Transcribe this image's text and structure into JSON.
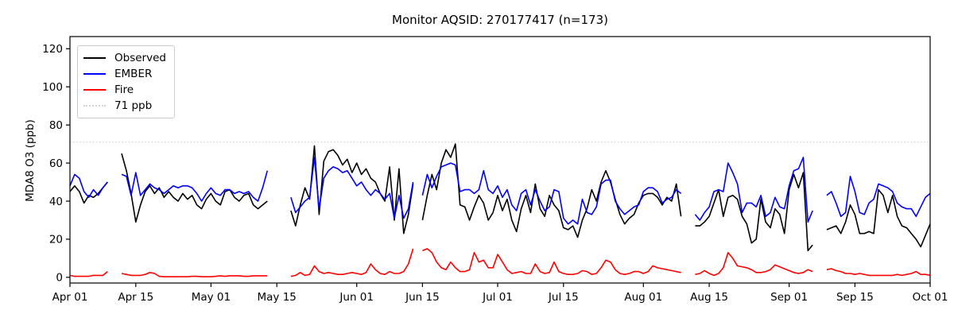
{
  "figure": {
    "title": "Monitor AQSID: 270177417 (n=173)",
    "ylabel": "MDA8 O3 (ppb)"
  },
  "legend": {
    "position": "upper-left",
    "items": [
      {
        "label": "Observed",
        "color": "#000000",
        "style": "solid"
      },
      {
        "label": "EMBER",
        "color": "#0000ff",
        "style": "solid"
      },
      {
        "label": "Fire",
        "color": "#ff0000",
        "style": "solid"
      },
      {
        "label": "71 ppb",
        "color": "#d3d3d3",
        "style": "dotted"
      }
    ]
  },
  "chart_data": {
    "type": "line",
    "title": "Monitor AQSID: 270177417 (n=173)",
    "xlabel": "",
    "ylabel": "MDA8 O3 (ppb)",
    "n_points": 173,
    "grid": false,
    "legend_position": "upper-left",
    "ylim": [
      -3,
      126.4
    ],
    "yticks": [
      0,
      20,
      40,
      60,
      80,
      100,
      120
    ],
    "x_unit": "days since Apr 01",
    "x_range_days": [
      0,
      183
    ],
    "x_tick_labels": [
      "Apr 01",
      "Apr 15",
      "May 01",
      "May 15",
      "Jun 01",
      "Jun 15",
      "Jul 01",
      "Jul 15",
      "Aug 01",
      "Aug 15",
      "Sep 01",
      "Sep 15",
      "Oct 01"
    ],
    "x_tick_days": [
      0,
      14,
      30,
      44,
      61,
      75,
      91,
      105,
      122,
      136,
      153,
      167,
      183
    ],
    "threshold": {
      "value": 71,
      "label": "71 ppb",
      "color": "#d3d3d3",
      "linestyle": "dotted"
    },
    "series": [
      {
        "name": "Observed",
        "color": "#000000",
        "values": [
          45,
          48,
          45,
          39,
          43,
          42,
          44,
          47,
          50,
          null,
          null,
          65,
          56,
          44,
          29,
          38,
          45,
          48,
          44,
          47,
          42,
          45,
          42,
          40,
          44,
          41,
          43,
          38,
          36,
          41,
          44,
          40,
          38,
          45,
          46,
          42,
          40,
          43,
          44,
          38,
          36,
          38,
          40,
          null,
          null,
          null,
          null,
          35,
          27,
          38,
          47,
          41,
          69,
          33,
          61,
          66,
          67,
          64,
          59,
          62,
          55,
          60,
          54,
          57,
          52,
          50,
          44,
          40,
          58,
          30,
          57,
          23,
          33,
          49,
          null,
          30,
          43,
          54,
          46,
          60,
          67,
          63,
          70,
          38,
          37,
          30,
          37,
          43,
          39,
          30,
          34,
          43,
          35,
          41,
          30,
          24,
          36,
          43,
          34,
          49,
          36,
          32,
          43,
          38,
          35,
          26,
          25,
          27,
          21,
          30,
          36,
          46,
          40,
          50,
          56,
          50,
          41,
          33,
          28,
          31,
          33,
          39,
          43,
          44,
          44,
          42,
          38,
          42,
          40,
          49,
          32,
          null,
          null,
          27,
          27,
          29,
          32,
          39,
          46,
          32,
          42,
          43,
          41,
          32,
          28,
          18,
          20,
          41,
          29,
          26,
          36,
          33,
          23,
          46,
          54,
          47,
          55,
          14,
          17,
          null,
          null,
          25,
          26,
          27,
          23,
          29,
          38,
          33,
          23,
          23,
          24,
          23,
          46,
          43,
          34,
          43,
          32,
          27,
          26,
          23,
          20,
          16,
          22,
          28
        ]
      },
      {
        "name": "EMBER",
        "color": "#0000ff",
        "values": [
          48,
          54,
          52,
          45,
          42,
          46,
          43,
          47,
          50,
          null,
          null,
          54,
          53,
          43,
          55,
          43,
          46,
          49,
          47,
          46,
          44,
          46,
          48,
          47,
          48,
          48,
          47,
          44,
          40,
          44,
          47,
          44,
          43,
          46,
          46,
          44,
          45,
          44,
          45,
          42,
          40,
          47,
          56,
          null,
          null,
          null,
          null,
          42,
          34,
          37,
          40,
          42,
          63,
          36,
          52,
          56,
          58,
          57,
          55,
          56,
          52,
          48,
          50,
          46,
          43,
          46,
          44,
          41,
          44,
          31,
          43,
          31,
          36,
          50,
          null,
          43,
          54,
          47,
          53,
          58,
          59,
          60,
          59,
          45,
          46,
          46,
          44,
          46,
          56,
          46,
          44,
          48,
          42,
          46,
          38,
          35,
          44,
          46,
          38,
          46,
          40,
          35,
          37,
          46,
          45,
          31,
          28,
          30,
          28,
          41,
          34,
          33,
          37,
          49,
          51,
          51,
          40,
          36,
          33,
          35,
          37,
          38,
          45,
          47,
          47,
          45,
          39,
          41,
          42,
          46,
          44,
          null,
          null,
          33,
          30,
          34,
          37,
          45,
          46,
          45,
          60,
          55,
          49,
          34,
          39,
          39,
          37,
          43,
          32,
          34,
          42,
          37,
          36,
          48,
          56,
          57,
          63,
          29,
          35,
          null,
          null,
          43,
          45,
          39,
          32,
          34,
          53,
          45,
          34,
          33,
          39,
          41,
          49,
          48,
          47,
          45,
          39,
          37,
          36,
          36,
          32,
          37,
          42,
          44
        ]
      },
      {
        "name": "Fire",
        "color": "#ff0000",
        "values": [
          1,
          0.5,
          0.5,
          0.5,
          0.5,
          1,
          1,
          1,
          3,
          null,
          null,
          2,
          1.5,
          1,
          1,
          1,
          1.5,
          2.5,
          2,
          0.5,
          0.3,
          0.3,
          0.3,
          0.3,
          0.3,
          0.3,
          0.5,
          0.5,
          0.3,
          0.3,
          0.3,
          0.5,
          0.8,
          0.5,
          0.8,
          0.8,
          0.8,
          0.5,
          0.5,
          0.8,
          0.8,
          0.8,
          0.8,
          null,
          null,
          null,
          null,
          0.5,
          1,
          2.5,
          1,
          1.5,
          6,
          3,
          2,
          2.5,
          2,
          1.5,
          1.5,
          2,
          2.5,
          2,
          1.5,
          2.5,
          7,
          4,
          2,
          1.5,
          3,
          2,
          2,
          3,
          7,
          15,
          null,
          14,
          15,
          13,
          8,
          5,
          4,
          8,
          5,
          3,
          3,
          4,
          13,
          8,
          9,
          5,
          5,
          12,
          8,
          4,
          2,
          2.5,
          3,
          2,
          2,
          7,
          3,
          2,
          2.5,
          8,
          3,
          2,
          1.5,
          1.5,
          2,
          3.5,
          3,
          1.5,
          2,
          5,
          9,
          8,
          4,
          2,
          1.5,
          2,
          3,
          3,
          2,
          3,
          6,
          5,
          4.5,
          4,
          3.5,
          3,
          2.5,
          null,
          null,
          1.5,
          2,
          3.5,
          2,
          1,
          2,
          5,
          13,
          10,
          6,
          5.5,
          5,
          4,
          2.5,
          2.5,
          3,
          4,
          6.5,
          5.5,
          4.5,
          3.5,
          2.5,
          2,
          2.5,
          4,
          3,
          null,
          null,
          4,
          4.5,
          3.5,
          3,
          2,
          2,
          1.5,
          2,
          1.5,
          1,
          1,
          1,
          1,
          1,
          1,
          1.5,
          1,
          1.5,
          2,
          3,
          1.5,
          1.5,
          1
        ]
      }
    ]
  }
}
